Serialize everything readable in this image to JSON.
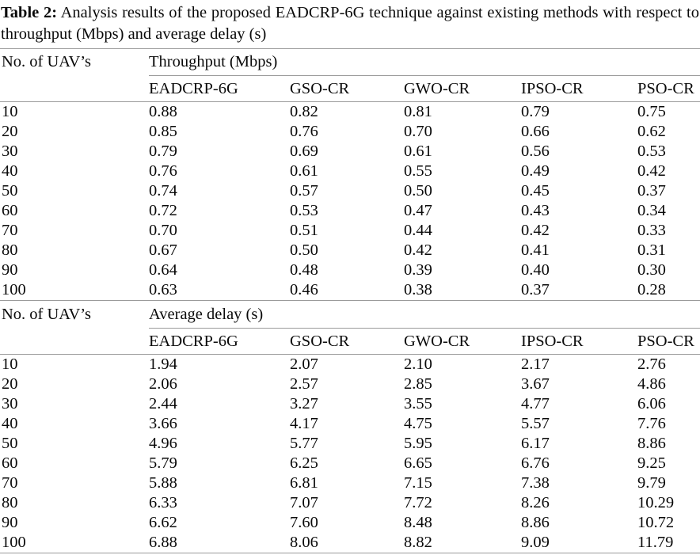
{
  "page": {
    "background": "#ffffff",
    "text_color": "#0a0a0a",
    "rule_color": "#9a9a9a"
  },
  "caption": {
    "label": "Table 2:",
    "text": "Analysis results of the proposed EADCRP-6G technique against existing methods with respect to throughput (Mbps) and average delay (s)"
  },
  "table": {
    "sections": [
      {
        "stub_header": "No. of UAV’s",
        "group_header": "Throughput (Mbps)",
        "columns": [
          "EADCRP-6G",
          "GSO-CR",
          "GWO-CR",
          "IPSO-CR",
          "PSO-CR"
        ],
        "rows": [
          [
            "10",
            "0.88",
            "0.82",
            "0.81",
            "0.79",
            "0.75"
          ],
          [
            "20",
            "0.85",
            "0.76",
            "0.70",
            "0.66",
            "0.62"
          ],
          [
            "30",
            "0.79",
            "0.69",
            "0.61",
            "0.56",
            "0.53"
          ],
          [
            "40",
            "0.76",
            "0.61",
            "0.55",
            "0.49",
            "0.42"
          ],
          [
            "50",
            "0.74",
            "0.57",
            "0.50",
            "0.45",
            "0.37"
          ],
          [
            "60",
            "0.72",
            "0.53",
            "0.47",
            "0.43",
            "0.34"
          ],
          [
            "70",
            "0.70",
            "0.51",
            "0.44",
            "0.42",
            "0.33"
          ],
          [
            "80",
            "0.67",
            "0.50",
            "0.42",
            "0.41",
            "0.31"
          ],
          [
            "90",
            "0.64",
            "0.48",
            "0.39",
            "0.40",
            "0.30"
          ],
          [
            "100",
            "0.63",
            "0.46",
            "0.38",
            "0.37",
            "0.28"
          ]
        ]
      },
      {
        "stub_header": "No. of UAV’s",
        "group_header": "Average delay (s)",
        "columns": [
          "EADCRP-6G",
          "GSO-CR",
          "GWO-CR",
          "IPSO-CR",
          "PSO-CR"
        ],
        "rows": [
          [
            "10",
            "1.94",
            "2.07",
            "2.10",
            "2.17",
            "2.76"
          ],
          [
            "20",
            "2.06",
            "2.57",
            "2.85",
            "3.67",
            "4.86"
          ],
          [
            "30",
            "2.44",
            "3.27",
            "3.55",
            "4.77",
            "6.06"
          ],
          [
            "40",
            "3.66",
            "4.17",
            "4.75",
            "5.57",
            "7.76"
          ],
          [
            "50",
            "4.96",
            "5.77",
            "5.95",
            "6.17",
            "8.86"
          ],
          [
            "60",
            "5.79",
            "6.25",
            "6.65",
            "6.76",
            "9.25"
          ],
          [
            "70",
            "5.88",
            "6.81",
            "7.15",
            "7.38",
            "9.79"
          ],
          [
            "80",
            "6.33",
            "7.07",
            "7.72",
            "8.26",
            "10.29"
          ],
          [
            "90",
            "6.62",
            "7.60",
            "8.48",
            "8.86",
            "10.72"
          ],
          [
            "100",
            "6.88",
            "8.06",
            "8.82",
            "9.09",
            "11.79"
          ]
        ]
      }
    ]
  }
}
